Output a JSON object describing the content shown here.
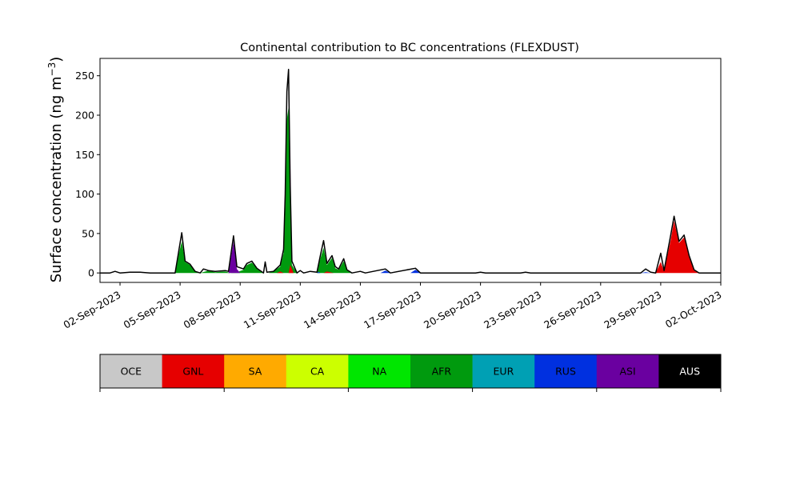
{
  "chart_data": {
    "type": "area",
    "title": "Continental contribution to BC concentrations (FLEXDUST)",
    "ylabel": "Surface concentration (ng m",
    "ylabel_sup": "−3",
    "ylabel_end": ")",
    "xlabel": "",
    "xlim": [
      "2023-09-01",
      "2023-10-02"
    ],
    "ylim": [
      -12,
      272
    ],
    "yticks": [
      0,
      50,
      100,
      150,
      200,
      250
    ],
    "xticks": [
      "2023-09-02",
      "2023-09-05",
      "2023-09-08",
      "2023-09-11",
      "2023-09-14",
      "2023-09-17",
      "2023-09-20",
      "2023-09-23",
      "2023-09-26",
      "2023-09-29",
      "2023-10-02"
    ],
    "xtick_labels": [
      "02-Sep-2023",
      "05-Sep-2023",
      "08-Sep-2023",
      "11-Sep-2023",
      "14-Sep-2023",
      "17-Sep-2023",
      "20-Sep-2023",
      "23-Sep-2023",
      "26-Sep-2023",
      "29-Sep-2023",
      "02-Oct-2023"
    ],
    "grid": false,
    "series": [
      {
        "name": "AFR",
        "color": "#009a0e",
        "points": [
          [
            "2023-09-01T00:00",
            0
          ],
          [
            "2023-09-04T18:00",
            0
          ],
          [
            "2023-09-04T22:00",
            22
          ],
          [
            "2023-09-05T02:00",
            40
          ],
          [
            "2023-09-05T06:00",
            14
          ],
          [
            "2023-09-05T12:00",
            10
          ],
          [
            "2023-09-05T18:00",
            2
          ],
          [
            "2023-09-06T00:00",
            0
          ],
          [
            "2023-09-06T10:00",
            3
          ],
          [
            "2023-09-06T18:00",
            1
          ],
          [
            "2023-09-07T06:00",
            2
          ],
          [
            "2023-09-07T12:00",
            0
          ],
          [
            "2023-09-07T20:00",
            1
          ],
          [
            "2023-09-08T04:00",
            4
          ],
          [
            "2023-09-08T08:00",
            10
          ],
          [
            "2023-09-08T14:00",
            13
          ],
          [
            "2023-09-08T20:00",
            6
          ],
          [
            "2023-09-09T04:00",
            0
          ],
          [
            "2023-09-09T10:00",
            0
          ],
          [
            "2023-09-09T16:00",
            2
          ],
          [
            "2023-09-10T00:00",
            8
          ],
          [
            "2023-09-10T04:00",
            25
          ],
          [
            "2023-09-10T06:00",
            80
          ],
          [
            "2023-09-10T08:00",
            195
          ],
          [
            "2023-09-10T10:00",
            210
          ],
          [
            "2023-09-10T12:00",
            90
          ],
          [
            "2023-09-10T14:00",
            10
          ],
          [
            "2023-09-10T20:00",
            0
          ],
          [
            "2023-09-11T12:00",
            0
          ],
          [
            "2023-09-11T20:00",
            0
          ],
          [
            "2023-09-12T00:00",
            18
          ],
          [
            "2023-09-12T04:00",
            32
          ],
          [
            "2023-09-12T08:00",
            10
          ],
          [
            "2023-09-12T14:00",
            19
          ],
          [
            "2023-09-12T18:00",
            6
          ],
          [
            "2023-09-12T22:00",
            4
          ],
          [
            "2023-09-13T04:00",
            15
          ],
          [
            "2023-09-13T08:00",
            3
          ],
          [
            "2023-09-13T14:00",
            0
          ],
          [
            "2023-10-02T00:00",
            0
          ]
        ]
      },
      {
        "name": "GNL",
        "color": "#e60000",
        "points": [
          [
            "2023-09-01T00:00",
            0
          ],
          [
            "2023-09-09T20:00",
            0
          ],
          [
            "2023-09-10T00:00",
            2
          ],
          [
            "2023-09-10T04:00",
            0
          ],
          [
            "2023-09-10T10:00",
            0
          ],
          [
            "2023-09-10T12:00",
            10
          ],
          [
            "2023-09-10T16:00",
            0
          ],
          [
            "2023-09-12T04:00",
            0
          ],
          [
            "2023-09-12T08:00",
            2
          ],
          [
            "2023-09-12T16:00",
            0
          ],
          [
            "2023-09-28T18:00",
            0
          ],
          [
            "2023-09-29T00:00",
            14
          ],
          [
            "2023-09-29T04:00",
            2
          ],
          [
            "2023-09-29T12:00",
            42
          ],
          [
            "2023-09-29T16:00",
            66
          ],
          [
            "2023-09-29T22:00",
            38
          ],
          [
            "2023-09-30T04:00",
            45
          ],
          [
            "2023-09-30T10:00",
            20
          ],
          [
            "2023-09-30T16:00",
            3
          ],
          [
            "2023-09-30T22:00",
            0
          ],
          [
            "2023-10-02T00:00",
            0
          ]
        ]
      },
      {
        "name": "ASI",
        "color": "#6a00a0",
        "points": [
          [
            "2023-09-01T00:00",
            0
          ],
          [
            "2023-09-07T10:00",
            0
          ],
          [
            "2023-09-07T16:00",
            40
          ],
          [
            "2023-09-07T20:00",
            5
          ],
          [
            "2023-09-08T00:00",
            0
          ],
          [
            "2023-10-02T00:00",
            0
          ]
        ]
      },
      {
        "name": "RUS",
        "color": "#0030e0",
        "points": [
          [
            "2023-09-01T00:00",
            0
          ],
          [
            "2023-09-11T20:00",
            0
          ],
          [
            "2023-09-11T22:00",
            1.5
          ],
          [
            "2023-09-12T00:00",
            0
          ],
          [
            "2023-09-15T00:00",
            0
          ],
          [
            "2023-09-15T06:00",
            3
          ],
          [
            "2023-09-15T12:00",
            0
          ],
          [
            "2023-09-16T12:00",
            0
          ],
          [
            "2023-09-16T18:00",
            4
          ],
          [
            "2023-09-17T00:00",
            0
          ],
          [
            "2023-09-28T00:00",
            0
          ],
          [
            "2023-09-28T06:00",
            1
          ],
          [
            "2023-09-28T12:00",
            0
          ],
          [
            "2023-10-02T00:00",
            0
          ]
        ]
      }
    ],
    "total": {
      "name": "total",
      "color": "#000000",
      "points": [
        [
          "2023-09-01T00:00",
          0
        ],
        [
          "2023-09-01T12:00",
          0
        ],
        [
          "2023-09-01T18:00",
          2
        ],
        [
          "2023-09-02T00:00",
          0
        ],
        [
          "2023-09-02T12:00",
          1
        ],
        [
          "2023-09-03T00:00",
          1
        ],
        [
          "2023-09-03T12:00",
          0
        ],
        [
          "2023-09-04T18:00",
          0
        ],
        [
          "2023-09-04T22:00",
          25
        ],
        [
          "2023-09-05T02:00",
          51
        ],
        [
          "2023-09-05T06:00",
          15
        ],
        [
          "2023-09-05T12:00",
          11
        ],
        [
          "2023-09-05T18:00",
          2
        ],
        [
          "2023-09-06T00:00",
          0
        ],
        [
          "2023-09-06T04:00",
          5
        ],
        [
          "2023-09-06T10:00",
          3
        ],
        [
          "2023-09-06T18:00",
          2
        ],
        [
          "2023-09-07T06:00",
          3
        ],
        [
          "2023-09-07T10:00",
          2
        ],
        [
          "2023-09-07T16:00",
          47
        ],
        [
          "2023-09-07T20:00",
          8
        ],
        [
          "2023-09-08T04:00",
          5
        ],
        [
          "2023-09-08T08:00",
          12
        ],
        [
          "2023-09-08T14:00",
          15
        ],
        [
          "2023-09-08T20:00",
          6
        ],
        [
          "2023-09-09T04:00",
          0
        ],
        [
          "2023-09-09T06:00",
          14
        ],
        [
          "2023-09-09T08:00",
          1
        ],
        [
          "2023-09-09T16:00",
          2
        ],
        [
          "2023-09-10T00:00",
          10
        ],
        [
          "2023-09-10T04:00",
          30
        ],
        [
          "2023-09-10T06:00",
          100
        ],
        [
          "2023-09-10T08:00",
          230
        ],
        [
          "2023-09-10T10:00",
          258
        ],
        [
          "2023-09-10T12:00",
          110
        ],
        [
          "2023-09-10T14:00",
          15
        ],
        [
          "2023-09-10T20:00",
          0
        ],
        [
          "2023-09-11T00:00",
          3
        ],
        [
          "2023-09-11T04:00",
          0
        ],
        [
          "2023-09-11T12:00",
          2
        ],
        [
          "2023-09-11T20:00",
          1
        ],
        [
          "2023-09-12T00:00",
          22
        ],
        [
          "2023-09-12T04:00",
          41
        ],
        [
          "2023-09-12T08:00",
          12
        ],
        [
          "2023-09-12T14:00",
          22
        ],
        [
          "2023-09-12T18:00",
          8
        ],
        [
          "2023-09-12T22:00",
          5
        ],
        [
          "2023-09-13T04:00",
          18
        ],
        [
          "2023-09-13T08:00",
          4
        ],
        [
          "2023-09-13T14:00",
          0
        ],
        [
          "2023-09-14T00:00",
          2
        ],
        [
          "2023-09-14T06:00",
          0
        ],
        [
          "2023-09-15T06:00",
          5
        ],
        [
          "2023-09-15T12:00",
          0
        ],
        [
          "2023-09-16T18:00",
          6
        ],
        [
          "2023-09-17T00:00",
          0
        ],
        [
          "2023-09-19T18:00",
          0
        ],
        [
          "2023-09-20T00:00",
          1
        ],
        [
          "2023-09-20T06:00",
          0
        ],
        [
          "2023-09-22T00:00",
          0
        ],
        [
          "2023-09-22T06:00",
          1
        ],
        [
          "2023-09-22T12:00",
          0
        ],
        [
          "2023-09-28T00:00",
          0
        ],
        [
          "2023-09-28T06:00",
          5
        ],
        [
          "2023-09-28T12:00",
          1
        ],
        [
          "2023-09-28T18:00",
          0
        ],
        [
          "2023-09-29T00:00",
          25
        ],
        [
          "2023-09-29T04:00",
          3
        ],
        [
          "2023-09-29T12:00",
          48
        ],
        [
          "2023-09-29T16:00",
          72
        ],
        [
          "2023-09-29T22:00",
          40
        ],
        [
          "2023-09-30T04:00",
          48
        ],
        [
          "2023-09-30T10:00",
          22
        ],
        [
          "2023-09-30T16:00",
          4
        ],
        [
          "2023-09-30T22:00",
          0
        ],
        [
          "2023-10-02T00:00",
          0
        ]
      ]
    }
  },
  "legend": {
    "items": [
      {
        "label": "OCE",
        "color": "#c8c8c8"
      },
      {
        "label": "GNL",
        "color": "#e60000"
      },
      {
        "label": "SA",
        "color": "#ffaa00"
      },
      {
        "label": "CA",
        "color": "#ccff00"
      },
      {
        "label": "NA",
        "color": "#00e600"
      },
      {
        "label": "AFR",
        "color": "#009a0e"
      },
      {
        "label": "EUR",
        "color": "#00a0b4"
      },
      {
        "label": "RUS",
        "color": "#0030e0"
      },
      {
        "label": "ASI",
        "color": "#6a00a0"
      },
      {
        "label": "AUS",
        "color": "#000000"
      }
    ]
  }
}
